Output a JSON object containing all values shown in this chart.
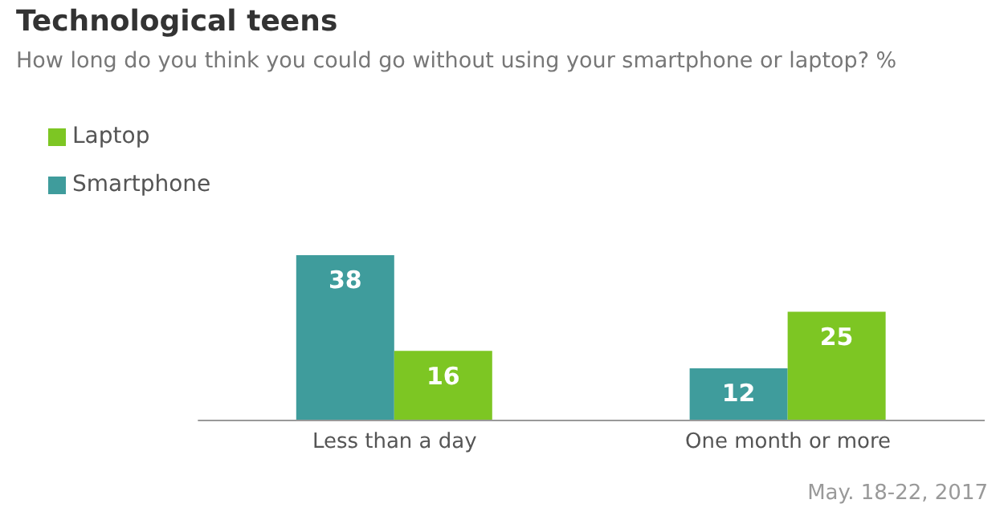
{
  "chart_data": {
    "type": "bar",
    "title": "Technological teens",
    "subtitle": "How long do you think you could go without using your smartphone or laptop? %",
    "categories": [
      "Less than a day",
      "One month or more"
    ],
    "series": [
      {
        "name": "Smartphone",
        "color": "#3f9c9c",
        "values": [
          38,
          12
        ]
      },
      {
        "name": "Laptop",
        "color": "#7dc623",
        "values": [
          16,
          25
        ]
      }
    ],
    "data_labels": true,
    "legend": "top left",
    "grid": false,
    "annotations": [
      "May. 18-22, 2017"
    ]
  }
}
